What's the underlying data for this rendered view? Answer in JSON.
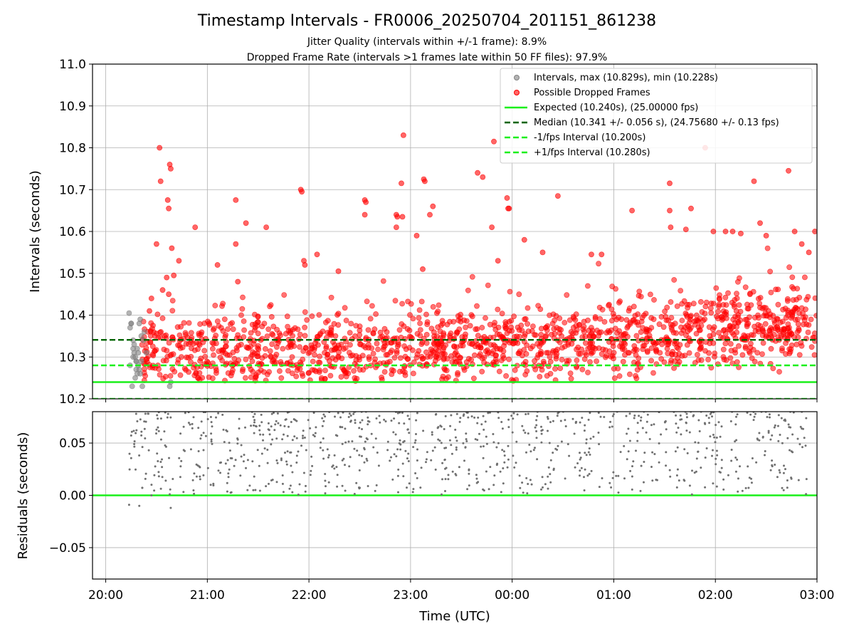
{
  "chart_data": [
    {
      "type": "scatter",
      "title": "Timestamp Intervals - FR0006_20250704_201151_861238",
      "subtitle_lines": [
        "Jitter Quality (intervals within +/-1 frame): 8.9%",
        "Dropped Frame Rate (intervals >1 frames late within 50 FF files): 97.9%"
      ],
      "xlabel": "",
      "ylabel": "Intervals (seconds)",
      "x_range_hours": [
        19.87,
        27.0
      ],
      "ylim": [
        10.2,
        11.0
      ],
      "y_ticks": [
        "10.2",
        "10.3",
        "10.4",
        "10.5",
        "10.6",
        "10.7",
        "10.8",
        "10.9",
        "11.0"
      ],
      "grid": true,
      "legend_position": "top-right",
      "legend": [
        "Intervals, max (10.829s), min (10.228s)",
        "Possible Dropped Frames",
        "Expected (10.240s), (25.00000 fps)",
        "Median (10.341 +/- 0.056 s), (24.75680 +/- 0.13 fps)",
        "-1/fps Interval (10.200s)",
        "+1/fps Interval (10.280s)"
      ],
      "reference_lines": [
        {
          "name": "Expected",
          "y": 10.24,
          "color": "#1aef1a",
          "style": "solid"
        },
        {
          "name": "Median",
          "y": 10.341,
          "color": "#006400",
          "style": "dashed"
        },
        {
          "name": "-1/fps",
          "y": 10.2,
          "color": "#1aef1a",
          "style": "dashed"
        },
        {
          "name": "+1/fps",
          "y": 10.28,
          "color": "#1aef1a",
          "style": "dashed"
        }
      ],
      "series": [
        {
          "name": "Intervals",
          "color": "#808080",
          "points": [
            [
              20.23,
              10.405
            ],
            [
              20.24,
              10.37
            ],
            [
              20.25,
              10.38
            ],
            [
              20.24,
              10.28
            ],
            [
              20.26,
              10.23
            ],
            [
              20.27,
              10.34
            ],
            [
              20.28,
              10.33
            ],
            [
              20.28,
              10.31
            ],
            [
              20.29,
              10.3
            ],
            [
              20.3,
              10.29
            ],
            [
              20.3,
              10.27
            ],
            [
              20.31,
              10.26
            ],
            [
              20.31,
              10.32
            ],
            [
              20.32,
              10.31
            ],
            [
              20.33,
              10.38
            ],
            [
              20.34,
              10.39
            ],
            [
              20.35,
              10.35
            ],
            [
              20.36,
              10.23
            ],
            [
              20.27,
              10.3
            ],
            [
              20.29,
              10.25
            ],
            [
              20.32,
              10.28
            ],
            [
              20.34,
              10.26
            ],
            [
              20.37,
              10.34
            ],
            [
              20.38,
              10.36
            ],
            [
              20.25,
              10.38
            ],
            [
              20.27,
              10.32
            ],
            [
              20.3,
              10.29
            ],
            [
              20.33,
              10.27
            ],
            [
              20.35,
              10.29
            ],
            [
              20.4,
              10.31
            ],
            [
              20.63,
              10.23
            ],
            [
              20.64,
              10.24
            ]
          ]
        },
        {
          "name": "Possible Dropped Frames",
          "color": "#ff0000",
          "points": [
            [
              20.53,
              10.8
            ],
            [
              20.54,
              10.72
            ],
            [
              20.5,
              10.57
            ],
            [
              20.61,
              10.675
            ],
            [
              20.62,
              10.655
            ],
            [
              20.63,
              10.76
            ],
            [
              20.64,
              10.75
            ],
            [
              20.65,
              10.56
            ],
            [
              20.67,
              10.495
            ],
            [
              20.72,
              10.53
            ],
            [
              20.88,
              10.61
            ],
            [
              20.6,
              10.49
            ],
            [
              20.62,
              10.45
            ],
            [
              20.56,
              10.46
            ],
            [
              20.45,
              10.44
            ],
            [
              20.43,
              10.41
            ],
            [
              21.1,
              10.52
            ],
            [
              21.28,
              10.675
            ],
            [
              21.28,
              10.57
            ],
            [
              21.3,
              10.48
            ],
            [
              21.38,
              10.62
            ],
            [
              21.58,
              10.61
            ],
            [
              21.92,
              10.7
            ],
            [
              21.93,
              10.695
            ],
            [
              21.95,
              10.53
            ],
            [
              21.96,
              10.52
            ],
            [
              22.08,
              10.545
            ],
            [
              22.29,
              10.505
            ],
            [
              22.55,
              10.675
            ],
            [
              22.56,
              10.67
            ],
            [
              22.55,
              10.64
            ],
            [
              22.86,
              10.64
            ],
            [
              22.86,
              10.61
            ],
            [
              22.87,
              10.635
            ],
            [
              22.91,
              10.715
            ],
            [
              22.92,
              10.635
            ],
            [
              22.93,
              10.83
            ],
            [
              23.13,
              10.725
            ],
            [
              23.14,
              10.72
            ],
            [
              23.06,
              10.59
            ],
            [
              23.19,
              10.64
            ],
            [
              23.22,
              10.66
            ],
            [
              23.12,
              10.51
            ],
            [
              23.66,
              10.74
            ],
            [
              23.71,
              10.73
            ],
            [
              23.82,
              10.815
            ],
            [
              23.8,
              10.61
            ],
            [
              23.95,
              10.68
            ],
            [
              23.96,
              10.655
            ],
            [
              23.97,
              10.655
            ],
            [
              23.86,
              10.53
            ],
            [
              24.12,
              10.58
            ],
            [
              24.3,
              10.55
            ],
            [
              24.45,
              10.685
            ],
            [
              24.78,
              10.545
            ],
            [
              24.88,
              10.545
            ],
            [
              25.18,
              10.65
            ],
            [
              25.55,
              10.715
            ],
            [
              25.55,
              10.65
            ],
            [
              25.56,
              10.61
            ],
            [
              25.71,
              10.605
            ],
            [
              25.76,
              10.655
            ],
            [
              25.9,
              10.8
            ],
            [
              25.98,
              10.6
            ],
            [
              26.1,
              10.6
            ],
            [
              26.17,
              10.6
            ],
            [
              26.25,
              10.595
            ],
            [
              26.38,
              10.72
            ],
            [
              26.44,
              10.62
            ],
            [
              26.5,
              10.59
            ],
            [
              26.72,
              10.745
            ],
            [
              26.78,
              10.6
            ],
            [
              26.85,
              10.57
            ],
            [
              26.92,
              10.55
            ],
            [
              26.98,
              10.6
            ]
          ]
        }
      ],
      "dense_cloud": [
        {
          "x_start": 20.35,
          "x_end": 27.0,
          "y_base": 10.3,
          "y_trend_end": 10.37,
          "spread": 0.07,
          "count": 1550,
          "color": "#ff0000"
        }
      ]
    },
    {
      "type": "scatter",
      "title": "",
      "xlabel": "Time (UTC)",
      "ylabel": "Residuals (seconds)",
      "x_range_hours": [
        19.87,
        27.0
      ],
      "ylim": [
        -0.08,
        0.08
      ],
      "y_ticks": [
        "−0.05",
        "0.00",
        "0.05"
      ],
      "y_tick_values": [
        -0.05,
        0.0,
        0.05
      ],
      "x_ticks": [
        "20:00",
        "21:00",
        "22:00",
        "23:00",
        "00:00",
        "01:00",
        "02:00",
        "03:00"
      ],
      "x_tick_values": [
        20,
        21,
        22,
        23,
        24,
        25,
        26,
        27
      ],
      "grid": true,
      "reference_lines": [
        {
          "name": "zero",
          "y": 0.0,
          "color": "#1aef1a",
          "style": "solid"
        }
      ],
      "series": [
        {
          "name": "",
          "color": "#707070",
          "points": [
            [
              20.23,
              -0.009
            ],
            [
              20.33,
              -0.01
            ],
            [
              20.45,
              0.0
            ],
            [
              20.64,
              -0.012
            ],
            [
              20.63,
              0.001
            ]
          ]
        }
      ],
      "dense_cloud": [
        {
          "x_start": 20.23,
          "x_end": 26.9,
          "y_min": 0.0,
          "y_max": 0.08,
          "count": 900,
          "color": "#707070"
        }
      ]
    }
  ]
}
